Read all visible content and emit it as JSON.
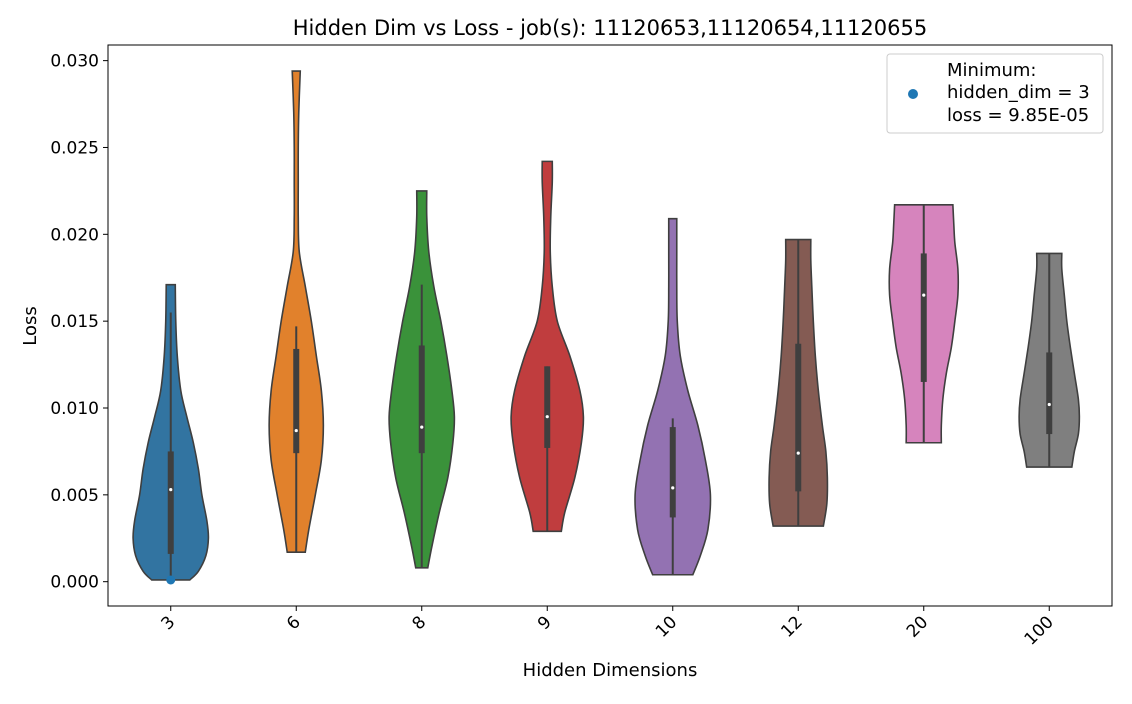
{
  "chart_data": {
    "type": "violin",
    "title": "Hidden Dim vs Loss - job(s): 11120653,11120654,11120655",
    "xlabel": "Hidden Dimensions",
    "ylabel": "Loss",
    "ylim": [
      -0.0014,
      0.0309
    ],
    "yticks": [
      0.0,
      0.005,
      0.01,
      0.015,
      0.02,
      0.025,
      0.03
    ],
    "ytick_labels": [
      "0.000",
      "0.005",
      "0.010",
      "0.015",
      "0.020",
      "0.025",
      "0.030"
    ],
    "categories": [
      "3",
      "6",
      "8",
      "9",
      "10",
      "12",
      "20",
      "100"
    ],
    "colors": [
      "#3274a1",
      "#e1812c",
      "#3a923a",
      "#c03d3e",
      "#9372b2",
      "#845b53",
      "#d684bd",
      "#7f7f7f"
    ],
    "violins": [
      {
        "category": "3",
        "min": 0.0001,
        "max": 0.0171,
        "q1": 0.0016,
        "median": 0.0053,
        "q3": 0.0075,
        "whisker_low": 0.0001,
        "whisker_high": 0.0155,
        "profile": [
          [
            0.0001,
            0.38
          ],
          [
            0.0006,
            0.55
          ],
          [
            0.0015,
            0.7
          ],
          [
            0.0025,
            0.75
          ],
          [
            0.0035,
            0.72
          ],
          [
            0.005,
            0.62
          ],
          [
            0.0065,
            0.55
          ],
          [
            0.008,
            0.45
          ],
          [
            0.0095,
            0.32
          ],
          [
            0.011,
            0.2
          ],
          [
            0.013,
            0.13
          ],
          [
            0.015,
            0.1
          ],
          [
            0.0171,
            0.09
          ]
        ]
      },
      {
        "category": "6",
        "min": 0.0017,
        "max": 0.0294,
        "q1": 0.0074,
        "median": 0.0087,
        "q3": 0.0134,
        "whisker_low": 0.0017,
        "whisker_high": 0.0147,
        "profile": [
          [
            0.0017,
            0.18
          ],
          [
            0.003,
            0.25
          ],
          [
            0.005,
            0.38
          ],
          [
            0.007,
            0.5
          ],
          [
            0.009,
            0.54
          ],
          [
            0.011,
            0.5
          ],
          [
            0.013,
            0.4
          ],
          [
            0.015,
            0.3
          ],
          [
            0.017,
            0.18
          ],
          [
            0.019,
            0.06
          ],
          [
            0.021,
            0.04
          ],
          [
            0.023,
            0.04
          ],
          [
            0.025,
            0.04
          ],
          [
            0.027,
            0.05
          ],
          [
            0.0294,
            0.08
          ]
        ]
      },
      {
        "category": "8",
        "min": 0.0008,
        "max": 0.0225,
        "q1": 0.0074,
        "median": 0.0089,
        "q3": 0.0136,
        "whisker_low": 0.0008,
        "whisker_high": 0.0171,
        "profile": [
          [
            0.0008,
            0.12
          ],
          [
            0.002,
            0.2
          ],
          [
            0.004,
            0.35
          ],
          [
            0.006,
            0.52
          ],
          [
            0.008,
            0.62
          ],
          [
            0.0095,
            0.65
          ],
          [
            0.011,
            0.6
          ],
          [
            0.013,
            0.5
          ],
          [
            0.015,
            0.38
          ],
          [
            0.017,
            0.24
          ],
          [
            0.019,
            0.14
          ],
          [
            0.021,
            0.1
          ],
          [
            0.0225,
            0.1
          ]
        ]
      },
      {
        "category": "9",
        "min": 0.0029,
        "max": 0.0242,
        "q1": 0.0077,
        "median": 0.0095,
        "q3": 0.0124,
        "whisker_low": 0.0029,
        "whisker_high": 0.0124,
        "profile": [
          [
            0.0029,
            0.28
          ],
          [
            0.004,
            0.35
          ],
          [
            0.006,
            0.55
          ],
          [
            0.008,
            0.68
          ],
          [
            0.0095,
            0.72
          ],
          [
            0.011,
            0.65
          ],
          [
            0.013,
            0.45
          ],
          [
            0.015,
            0.2
          ],
          [
            0.017,
            0.1
          ],
          [
            0.019,
            0.06
          ],
          [
            0.021,
            0.07
          ],
          [
            0.023,
            0.1
          ],
          [
            0.0242,
            0.1
          ]
        ]
      },
      {
        "category": "10",
        "min": 0.0004,
        "max": 0.0209,
        "q1": 0.0037,
        "median": 0.0054,
        "q3": 0.0089,
        "whisker_low": 0.0004,
        "whisker_high": 0.0094,
        "profile": [
          [
            0.0004,
            0.4
          ],
          [
            0.0015,
            0.55
          ],
          [
            0.003,
            0.7
          ],
          [
            0.005,
            0.75
          ],
          [
            0.007,
            0.65
          ],
          [
            0.009,
            0.5
          ],
          [
            0.011,
            0.3
          ],
          [
            0.013,
            0.15
          ],
          [
            0.015,
            0.09
          ],
          [
            0.017,
            0.08
          ],
          [
            0.019,
            0.08
          ],
          [
            0.0209,
            0.08
          ]
        ]
      },
      {
        "category": "12",
        "min": 0.0032,
        "max": 0.0197,
        "q1": 0.0052,
        "median": 0.0074,
        "q3": 0.0137,
        "whisker_low": 0.0032,
        "whisker_high": 0.0197,
        "profile": [
          [
            0.0032,
            0.5
          ],
          [
            0.0045,
            0.57
          ],
          [
            0.006,
            0.58
          ],
          [
            0.0075,
            0.55
          ],
          [
            0.009,
            0.48
          ],
          [
            0.011,
            0.4
          ],
          [
            0.013,
            0.34
          ],
          [
            0.015,
            0.3
          ],
          [
            0.017,
            0.27
          ],
          [
            0.0185,
            0.25
          ],
          [
            0.0197,
            0.25
          ]
        ]
      },
      {
        "category": "20",
        "min": 0.008,
        "max": 0.0217,
        "q1": 0.0115,
        "median": 0.0165,
        "q3": 0.0189,
        "whisker_low": 0.008,
        "whisker_high": 0.0217,
        "profile": [
          [
            0.008,
            0.35
          ],
          [
            0.009,
            0.35
          ],
          [
            0.0105,
            0.38
          ],
          [
            0.012,
            0.45
          ],
          [
            0.0135,
            0.55
          ],
          [
            0.015,
            0.62
          ],
          [
            0.0165,
            0.68
          ],
          [
            0.018,
            0.68
          ],
          [
            0.0195,
            0.62
          ],
          [
            0.0205,
            0.6
          ],
          [
            0.0217,
            0.58
          ]
        ]
      },
      {
        "category": "100",
        "min": 0.0066,
        "max": 0.0189,
        "q1": 0.0085,
        "median": 0.0102,
        "q3": 0.0132,
        "whisker_low": 0.0066,
        "whisker_high": 0.0189,
        "profile": [
          [
            0.0066,
            0.45
          ],
          [
            0.0075,
            0.5
          ],
          [
            0.0085,
            0.58
          ],
          [
            0.0095,
            0.6
          ],
          [
            0.0105,
            0.58
          ],
          [
            0.012,
            0.5
          ],
          [
            0.0135,
            0.42
          ],
          [
            0.015,
            0.35
          ],
          [
            0.0165,
            0.3
          ],
          [
            0.018,
            0.25
          ],
          [
            0.0189,
            0.25
          ]
        ]
      }
    ],
    "highlight": {
      "category": "3",
      "value": 9.85e-05,
      "color": "#1f77b4"
    },
    "legend": {
      "placement": "top-right",
      "lines": [
        "Minimum:",
        "hidden_dim = 3",
        "loss = 9.85E-05"
      ]
    }
  }
}
